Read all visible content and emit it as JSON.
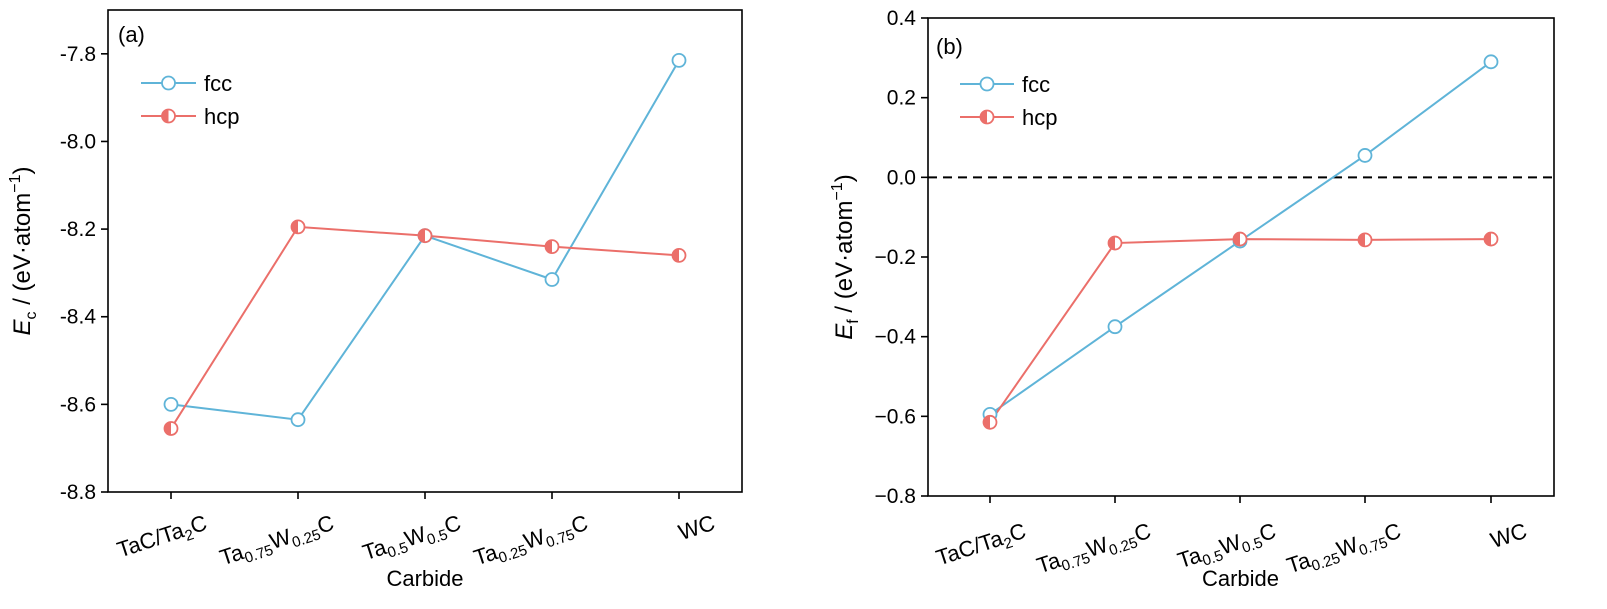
{
  "chart_data": [
    {
      "type": "line",
      "panel_label": "(a)",
      "ylabel": {
        "symbol": "E",
        "sub": "c",
        "unit_prefix": " / (eV·atom",
        "exp": "−1",
        "unit_suffix": ")"
      },
      "xlabel": "Carbide",
      "categories": [
        {
          "parts": [
            {
              "t": "TaC/Ta"
            },
            {
              "t": "2",
              "sub": true
            },
            {
              "t": "C"
            }
          ]
        },
        {
          "parts": [
            {
              "t": "Ta"
            },
            {
              "t": "0.75",
              "sub": true
            },
            {
              "t": "W"
            },
            {
              "t": "0.25",
              "sub": true
            },
            {
              "t": "C"
            }
          ]
        },
        {
          "parts": [
            {
              "t": "Ta"
            },
            {
              "t": "0.5",
              "sub": true
            },
            {
              "t": "W"
            },
            {
              "t": "0.5",
              "sub": true
            },
            {
              "t": "C"
            }
          ]
        },
        {
          "parts": [
            {
              "t": "Ta"
            },
            {
              "t": "0.25",
              "sub": true
            },
            {
              "t": "W"
            },
            {
              "t": "0.75",
              "sub": true
            },
            {
              "t": "C"
            }
          ]
        },
        {
          "parts": [
            {
              "t": "WC"
            }
          ]
        }
      ],
      "ylim": [
        -8.8,
        -7.7
      ],
      "yticks": [
        -8.8,
        -8.6,
        -8.4,
        -8.2,
        -8.0,
        -7.8
      ],
      "ytick_labels": [
        "-8.8",
        "-8.6",
        "-8.4",
        "-8.2",
        "-8.0",
        "-7.8"
      ],
      "grid": false,
      "legend": "top-left",
      "series": [
        {
          "name": "fcc",
          "color": "#5fb4d8",
          "marker": "open-circle",
          "values": [
            -8.6,
            -8.635,
            -8.215,
            -8.315,
            -7.815
          ]
        },
        {
          "name": "hcp",
          "color": "#eb6f6a",
          "marker": "half-filled-circle",
          "values": [
            -8.655,
            -8.195,
            -8.215,
            -8.24,
            -8.26
          ]
        }
      ]
    },
    {
      "type": "line",
      "panel_label": "(b)",
      "ylabel": {
        "symbol": "E",
        "sub": "f",
        "unit_prefix": " / (eV·atom",
        "exp": "−1",
        "unit_suffix": ")"
      },
      "xlabel": "Carbide",
      "categories": [
        {
          "parts": [
            {
              "t": "TaC/Ta"
            },
            {
              "t": "2",
              "sub": true
            },
            {
              "t": "C"
            }
          ]
        },
        {
          "parts": [
            {
              "t": "Ta"
            },
            {
              "t": "0.75",
              "sub": true
            },
            {
              "t": "W"
            },
            {
              "t": "0.25",
              "sub": true
            },
            {
              "t": "C"
            }
          ]
        },
        {
          "parts": [
            {
              "t": "Ta"
            },
            {
              "t": "0.5",
              "sub": true
            },
            {
              "t": "W"
            },
            {
              "t": "0.5",
              "sub": true
            },
            {
              "t": "C"
            }
          ]
        },
        {
          "parts": [
            {
              "t": "Ta"
            },
            {
              "t": "0.25",
              "sub": true
            },
            {
              "t": "W"
            },
            {
              "t": "0.75",
              "sub": true
            },
            {
              "t": "C"
            }
          ]
        },
        {
          "parts": [
            {
              "t": "WC"
            }
          ]
        }
      ],
      "ylim": [
        -0.8,
        0.4
      ],
      "yticks": [
        -0.8,
        -0.6,
        -0.4,
        -0.2,
        0.0,
        0.2,
        0.4
      ],
      "ytick_labels": [
        "−0.8",
        "−0.6",
        "−0.4",
        "−0.2",
        "0.0",
        "0.2",
        "0.4"
      ],
      "grid": false,
      "legend": "top-left",
      "reference_line": {
        "y": 0.0,
        "style": "dashed"
      },
      "series": [
        {
          "name": "fcc",
          "color": "#5fb4d8",
          "marker": "open-circle",
          "values": [
            -0.595,
            -0.375,
            -0.16,
            0.055,
            0.29
          ]
        },
        {
          "name": "hcp",
          "color": "#eb6f6a",
          "marker": "half-filled-circle",
          "values": [
            -0.615,
            -0.165,
            -0.155,
            -0.157,
            -0.155
          ]
        }
      ]
    }
  ]
}
